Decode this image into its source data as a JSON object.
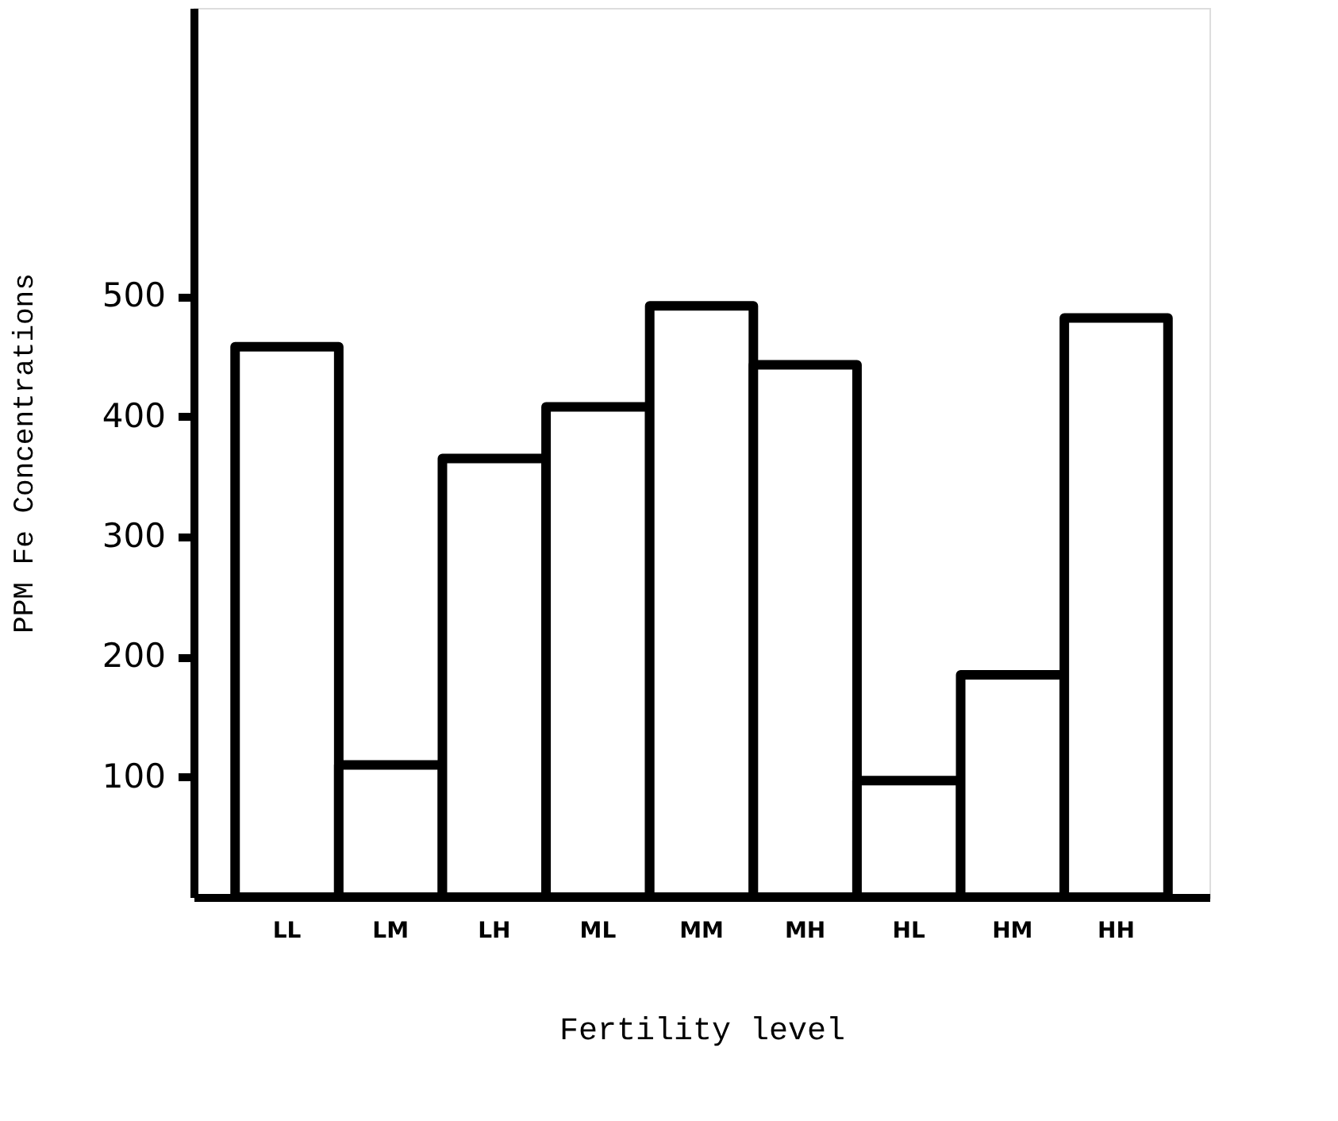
{
  "chart_data": {
    "type": "bar",
    "xlabel": "Fertility level",
    "ylabel": "PPM Fe Concentrations",
    "categories": [
      "LL",
      "LM",
      "LH",
      "ML",
      "MM",
      "MH",
      "HL",
      "HM",
      "HH"
    ],
    "values": [
      458,
      110,
      365,
      408,
      492,
      443,
      97,
      185,
      482
    ],
    "color": "#ffffff",
    "ylim": [
      0,
      740
    ],
    "yticks": [
      100,
      200,
      300,
      400,
      500
    ],
    "grid": false
  }
}
